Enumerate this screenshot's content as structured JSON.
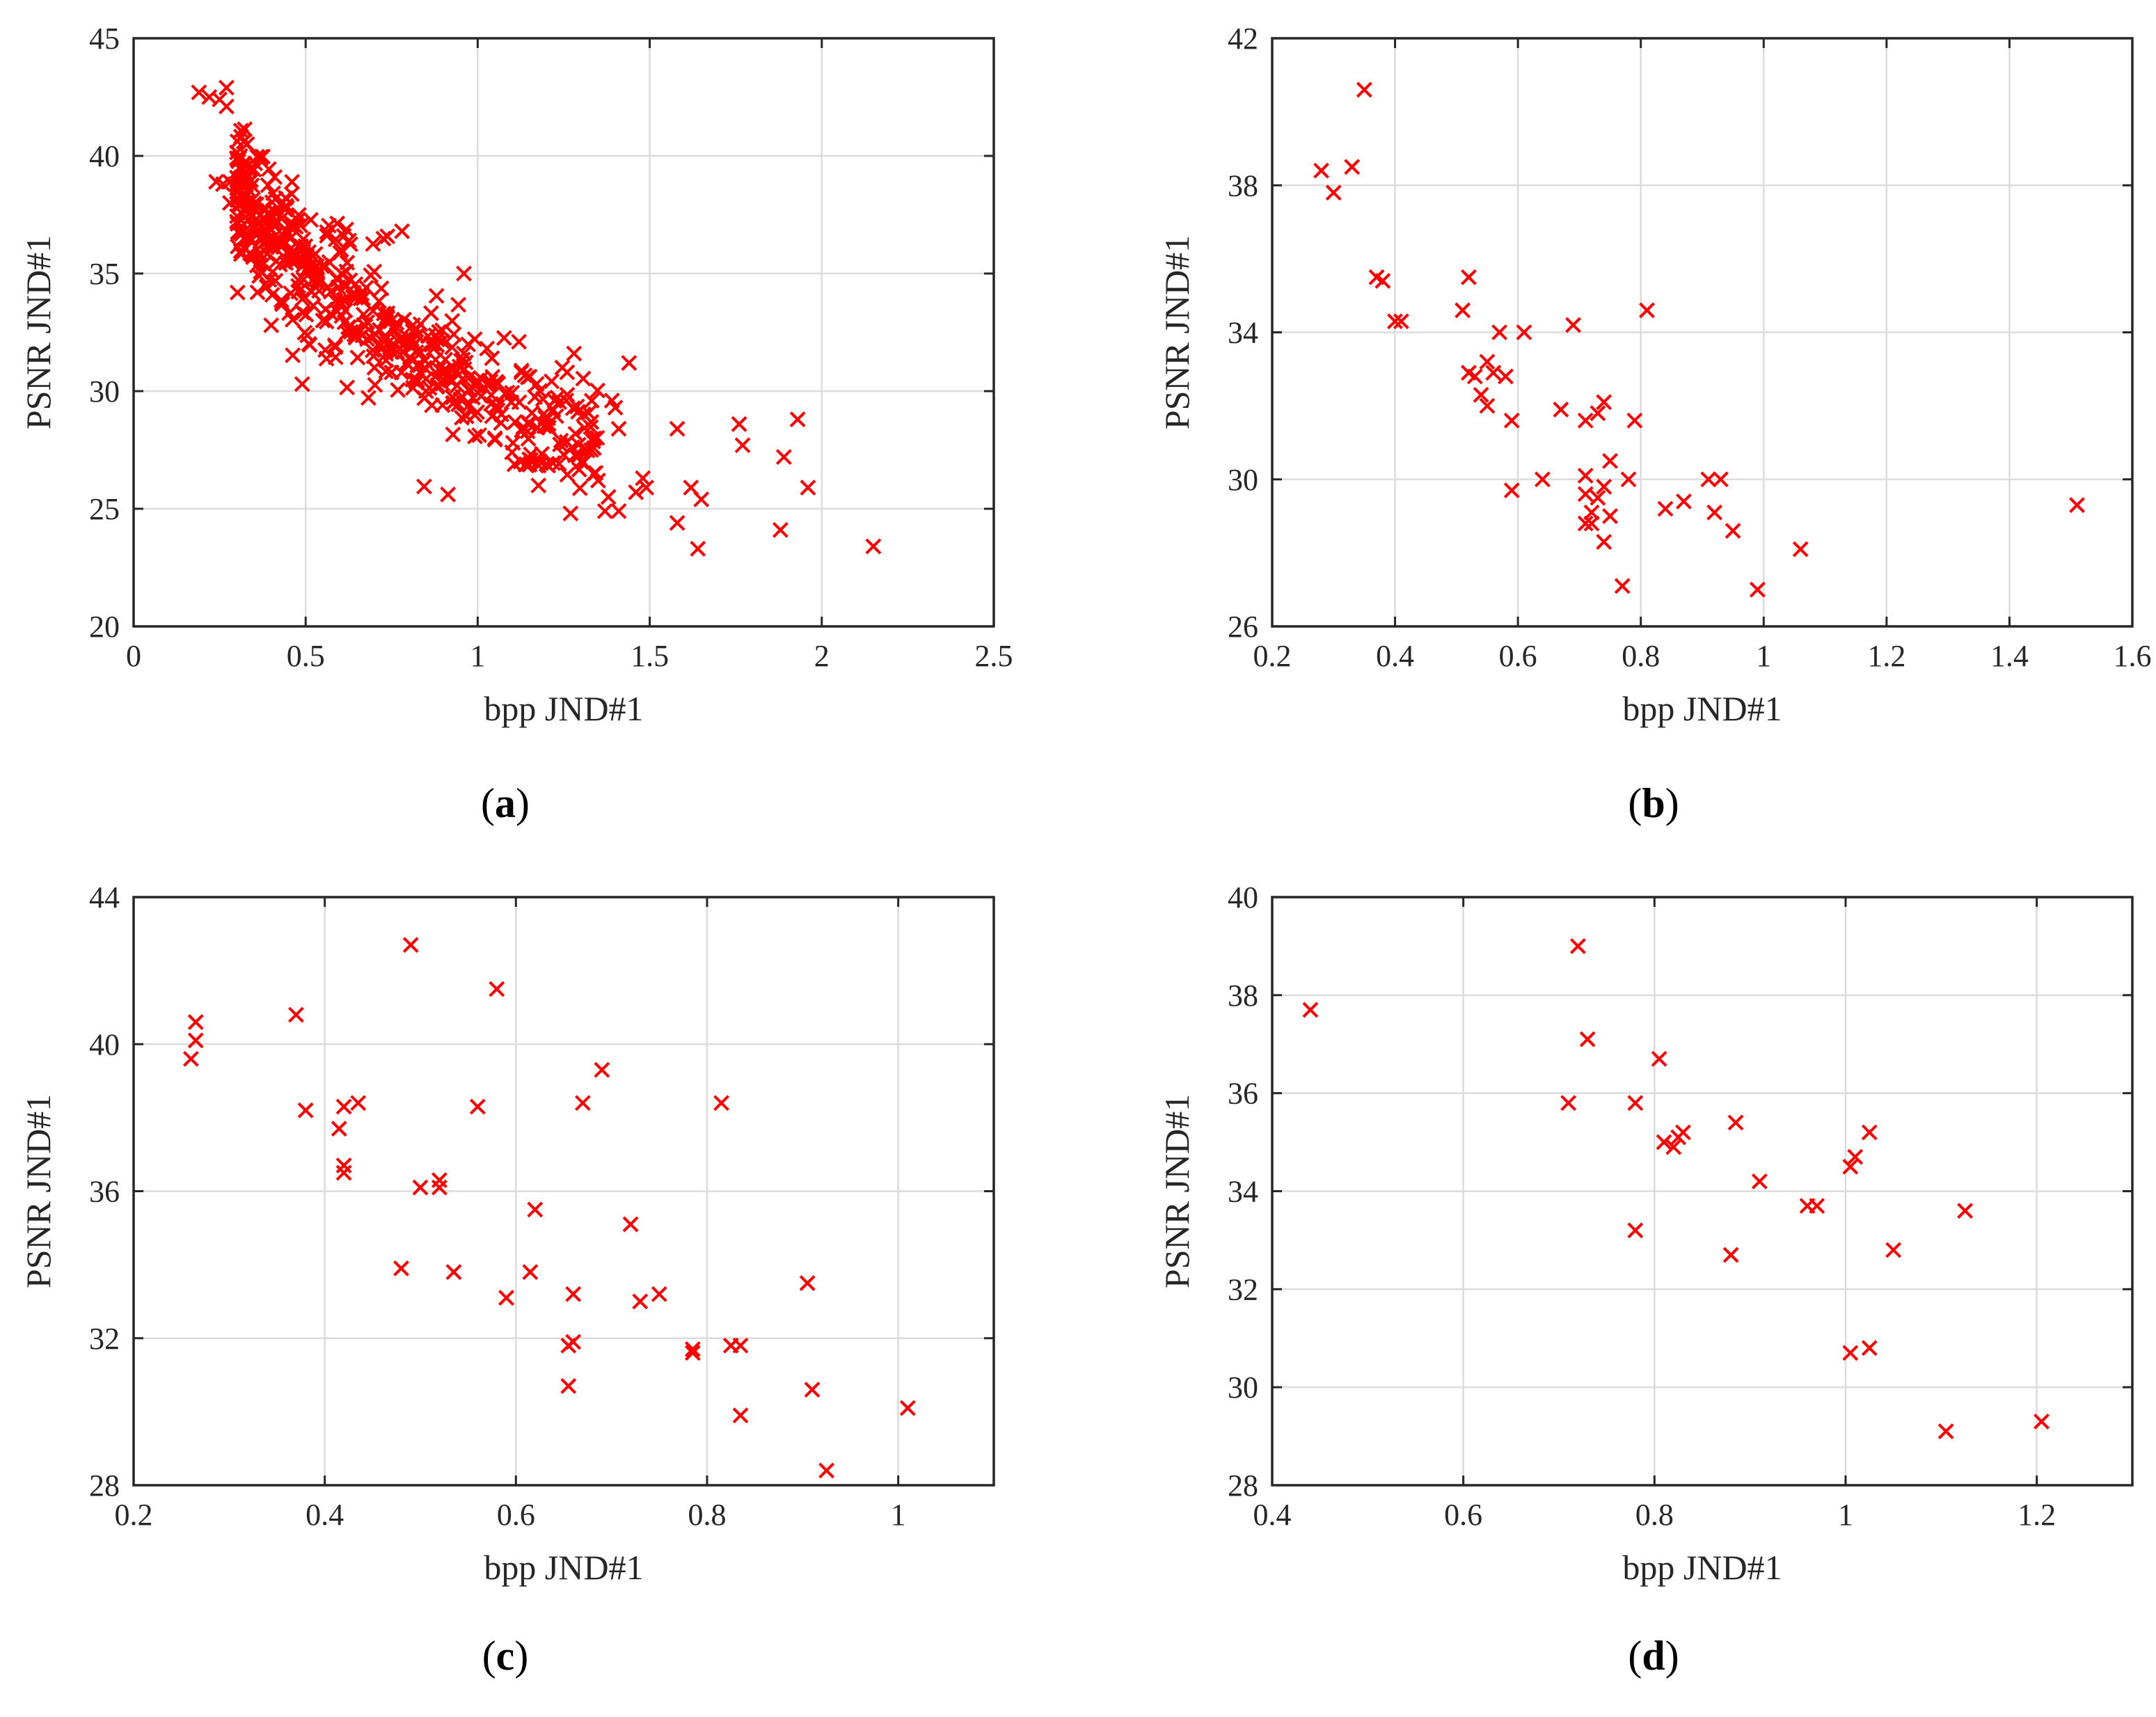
{
  "figure": {
    "style": {
      "marker_color": "#ff0000",
      "axis_color": "#262626",
      "grid_color": "#dcdcdc"
    },
    "captions": [
      "a",
      "b",
      "c",
      "d"
    ]
  },
  "chart_data": [
    {
      "id": "a",
      "type": "scatter",
      "marker": "x",
      "title": "",
      "xlabel": "bpp JND#1",
      "ylabel": "PSNR JND#1",
      "xlim": [
        0,
        2.5
      ],
      "ylim": [
        20,
        45
      ],
      "xticks": [
        0,
        0.5,
        1,
        1.5,
        2,
        2.5
      ],
      "xtick_labels": [
        "0",
        "0.5",
        "1",
        "1.5",
        "2",
        "2.5"
      ],
      "yticks": [
        20,
        25,
        30,
        35,
        40,
        45
      ],
      "ytick_labels": [
        "20",
        "25",
        "30",
        "35",
        "40",
        "45"
      ],
      "grid": true,
      "dense_cluster": {
        "count": 520,
        "note": "dense band of points along the main trend, x from about 0.3 to 1.35"
      },
      "points": [
        [
          0.19,
          42.7
        ],
        [
          0.22,
          42.5
        ],
        [
          0.25,
          42.4
        ],
        [
          0.27,
          42.9
        ],
        [
          0.27,
          42.1
        ],
        [
          0.24,
          38.9
        ],
        [
          0.26,
          38.8
        ],
        [
          0.28,
          38.9
        ],
        [
          0.28,
          38.0
        ],
        [
          0.32,
          40.6
        ],
        [
          0.31,
          40.0
        ],
        [
          0.33,
          40.5
        ],
        [
          0.36,
          34.2
        ],
        [
          0.4,
          32.8
        ],
        [
          0.41,
          39.1
        ],
        [
          0.49,
          30.3
        ],
        [
          0.78,
          36.8
        ],
        [
          0.96,
          35.0
        ],
        [
          1.12,
          32.1
        ],
        [
          1.26,
          30.8
        ],
        [
          1.28,
          31.6
        ],
        [
          1.27,
          24.8
        ],
        [
          1.33,
          27.5
        ],
        [
          1.37,
          24.9
        ],
        [
          1.39,
          29.6
        ],
        [
          1.4,
          29.3
        ],
        [
          1.41,
          28.4
        ],
        [
          1.41,
          24.9
        ],
        [
          1.44,
          31.2
        ],
        [
          1.46,
          25.7
        ],
        [
          1.48,
          26.3
        ],
        [
          1.49,
          25.9
        ],
        [
          1.58,
          28.4
        ],
        [
          1.58,
          24.4
        ],
        [
          1.62,
          25.9
        ],
        [
          1.65,
          25.4
        ],
        [
          1.64,
          23.3
        ],
        [
          1.76,
          28.6
        ],
        [
          1.77,
          27.7
        ],
        [
          1.88,
          24.1
        ],
        [
          1.89,
          27.2
        ],
        [
          1.93,
          28.8
        ],
        [
          1.96,
          25.9
        ],
        [
          2.15,
          23.4
        ],
        [
          0.55,
          33.0
        ],
        [
          0.62,
          32.5
        ],
        [
          0.7,
          31.0
        ],
        [
          0.85,
          30.0
        ],
        [
          0.93,
          29.5
        ],
        [
          1.05,
          28.0
        ],
        [
          1.1,
          27.4
        ],
        [
          1.15,
          27.1
        ],
        [
          1.2,
          26.9
        ],
        [
          1.25,
          27.3
        ],
        [
          1.3,
          27.0
        ],
        [
          1.2,
          28.5
        ],
        [
          1.22,
          29.2
        ],
        [
          1.35,
          26.2
        ],
        [
          1.38,
          25.5
        ],
        [
          1.34,
          26.5
        ]
      ]
    },
    {
      "id": "b",
      "type": "scatter",
      "marker": "x",
      "title": "",
      "xlabel": "bpp JND#1",
      "ylabel": "PSNR JND#1",
      "xlim": [
        0.2,
        1.6
      ],
      "ylim": [
        26,
        42
      ],
      "xticks": [
        0.2,
        0.4,
        0.6,
        0.8,
        1,
        1.2,
        1.4,
        1.6
      ],
      "xtick_labels": [
        "0.2",
        "0.4",
        "0.6",
        "0.8",
        "1",
        "1.2",
        "1.4",
        "1.6"
      ],
      "yticks": [
        26,
        30,
        34,
        38,
        42
      ],
      "ytick_labels": [
        "26",
        "30",
        "34",
        "38",
        "42"
      ],
      "grid": true,
      "points": [
        [
          0.28,
          38.4
        ],
        [
          0.3,
          37.8
        ],
        [
          0.33,
          38.5
        ],
        [
          0.35,
          40.6
        ],
        [
          0.37,
          35.5
        ],
        [
          0.38,
          35.4
        ],
        [
          0.4,
          34.3
        ],
        [
          0.41,
          34.3
        ],
        [
          0.51,
          34.6
        ],
        [
          0.52,
          35.5
        ],
        [
          0.52,
          32.9
        ],
        [
          0.53,
          32.8
        ],
        [
          0.54,
          32.3
        ],
        [
          0.55,
          33.2
        ],
        [
          0.55,
          32.0
        ],
        [
          0.56,
          32.9
        ],
        [
          0.57,
          34.0
        ],
        [
          0.58,
          32.8
        ],
        [
          0.59,
          31.6
        ],
        [
          0.59,
          29.7
        ],
        [
          0.61,
          34.0
        ],
        [
          0.64,
          30.0
        ],
        [
          0.67,
          31.9
        ],
        [
          0.69,
          34.2
        ],
        [
          0.71,
          31.6
        ],
        [
          0.71,
          30.1
        ],
        [
          0.71,
          29.6
        ],
        [
          0.71,
          28.8
        ],
        [
          0.72,
          29.1
        ],
        [
          0.72,
          28.8
        ],
        [
          0.73,
          31.8
        ],
        [
          0.73,
          29.5
        ],
        [
          0.74,
          32.1
        ],
        [
          0.74,
          29.8
        ],
        [
          0.74,
          28.3
        ],
        [
          0.75,
          30.5
        ],
        [
          0.75,
          29.0
        ],
        [
          0.77,
          27.1
        ],
        [
          0.78,
          30.0
        ],
        [
          0.79,
          31.6
        ],
        [
          0.81,
          34.6
        ],
        [
          0.84,
          29.2
        ],
        [
          0.87,
          29.4
        ],
        [
          0.91,
          30.0
        ],
        [
          0.92,
          29.1
        ],
        [
          0.93,
          30.0
        ],
        [
          0.95,
          28.6
        ],
        [
          0.99,
          27.0
        ],
        [
          1.06,
          28.1
        ],
        [
          1.51,
          29.3
        ]
      ]
    },
    {
      "id": "c",
      "type": "scatter",
      "marker": "x",
      "title": "",
      "xlabel": "bpp JND#1",
      "ylabel": "PSNR JND#1",
      "xlim": [
        0.2,
        1.1
      ],
      "ylim": [
        28,
        44
      ],
      "xticks": [
        0.2,
        0.4,
        0.6,
        0.8,
        1
      ],
      "xtick_labels": [
        "0.2",
        "0.4",
        "0.6",
        "0.8",
        "1"
      ],
      "yticks": [
        28,
        32,
        36,
        40,
        44
      ],
      "ytick_labels": [
        "28",
        "32",
        "36",
        "40",
        "44"
      ],
      "grid": true,
      "points": [
        [
          0.26,
          39.6
        ],
        [
          0.265,
          40.1
        ],
        [
          0.265,
          40.6
        ],
        [
          0.37,
          40.8
        ],
        [
          0.38,
          38.2
        ],
        [
          0.415,
          37.7
        ],
        [
          0.42,
          36.7
        ],
        [
          0.42,
          36.5
        ],
        [
          0.42,
          38.3
        ],
        [
          0.435,
          38.4
        ],
        [
          0.48,
          33.9
        ],
        [
          0.49,
          42.7
        ],
        [
          0.5,
          36.1
        ],
        [
          0.52,
          36.3
        ],
        [
          0.52,
          36.1
        ],
        [
          0.535,
          33.8
        ],
        [
          0.56,
          38.3
        ],
        [
          0.58,
          41.5
        ],
        [
          0.59,
          33.1
        ],
        [
          0.615,
          33.8
        ],
        [
          0.62,
          35.5
        ],
        [
          0.655,
          30.7
        ],
        [
          0.655,
          31.8
        ],
        [
          0.66,
          31.9
        ],
        [
          0.66,
          33.2
        ],
        [
          0.67,
          38.4
        ],
        [
          0.69,
          39.3
        ],
        [
          0.72,
          35.1
        ],
        [
          0.73,
          33.0
        ],
        [
          0.75,
          33.2
        ],
        [
          0.785,
          31.7
        ],
        [
          0.785,
          31.6
        ],
        [
          0.815,
          38.4
        ],
        [
          0.825,
          31.8
        ],
        [
          0.835,
          31.8
        ],
        [
          0.835,
          29.9
        ],
        [
          0.905,
          33.5
        ],
        [
          0.91,
          30.6
        ],
        [
          0.925,
          28.4
        ],
        [
          1.01,
          30.1
        ]
      ]
    },
    {
      "id": "d",
      "type": "scatter",
      "marker": "x",
      "title": "",
      "xlabel": "bpp JND#1",
      "ylabel": "PSNR JND#1",
      "xlim": [
        0.4,
        1.3
      ],
      "ylim": [
        28,
        40
      ],
      "xticks": [
        0.4,
        0.6,
        0.8,
        1,
        1.2
      ],
      "xtick_labels": [
        "0.4",
        "0.6",
        "0.8",
        "1",
        "1.2"
      ],
      "yticks": [
        28,
        30,
        32,
        34,
        36,
        38,
        40
      ],
      "ytick_labels": [
        "28",
        "30",
        "32",
        "34",
        "36",
        "38",
        "40"
      ],
      "grid": true,
      "points": [
        [
          0.44,
          37.7
        ],
        [
          0.71,
          35.8
        ],
        [
          0.72,
          39.0
        ],
        [
          0.73,
          37.1
        ],
        [
          0.78,
          35.8
        ],
        [
          0.78,
          33.2
        ],
        [
          0.805,
          36.7
        ],
        [
          0.81,
          35.0
        ],
        [
          0.82,
          34.9
        ],
        [
          0.825,
          35.1
        ],
        [
          0.83,
          35.2
        ],
        [
          0.88,
          32.7
        ],
        [
          0.885,
          35.4
        ],
        [
          0.91,
          34.2
        ],
        [
          0.96,
          33.7
        ],
        [
          0.97,
          33.7
        ],
        [
          1.005,
          34.5
        ],
        [
          1.005,
          30.7
        ],
        [
          1.01,
          34.7
        ],
        [
          1.025,
          35.2
        ],
        [
          1.025,
          30.8
        ],
        [
          1.05,
          32.8
        ],
        [
          1.105,
          29.1
        ],
        [
          1.125,
          33.6
        ],
        [
          1.205,
          29.3
        ]
      ]
    }
  ]
}
